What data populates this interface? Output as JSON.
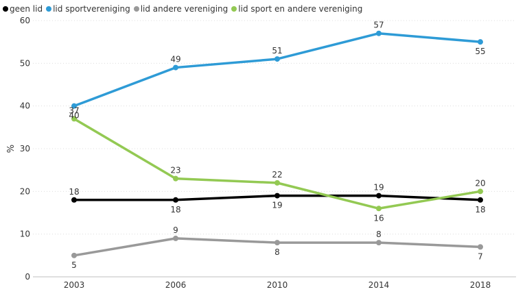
{
  "chart_data": {
    "type": "line",
    "title": "",
    "xlabel": "",
    "ylabel": "%",
    "ylim": [
      0,
      60
    ],
    "yticks": [
      0,
      10,
      20,
      30,
      40,
      50,
      60
    ],
    "categories": [
      "2003",
      "2006",
      "2010",
      "2014",
      "2018"
    ],
    "grid": true,
    "legend_position": "top-left",
    "series": [
      {
        "name": "geen lid",
        "color": "#000000",
        "values": [
          18,
          18,
          19,
          19,
          18
        ],
        "label_positions": [
          "above",
          "below",
          "below",
          "above",
          "below"
        ]
      },
      {
        "name": "lid sportvereniging",
        "color": "#2e9bd6",
        "values": [
          40,
          49,
          51,
          57,
          55
        ],
        "label_positions": [
          "below",
          "above",
          "above",
          "above",
          "below"
        ]
      },
      {
        "name": "lid andere vereniging",
        "color": "#999999",
        "values": [
          5,
          9,
          8,
          8,
          7
        ],
        "label_positions": [
          "below",
          "above",
          "below",
          "above",
          "below"
        ]
      },
      {
        "name": "lid sport en andere vereniging",
        "color": "#93c953",
        "values": [
          37,
          23,
          22,
          16,
          20
        ],
        "label_positions": [
          "above",
          "above",
          "above",
          "below",
          "above"
        ]
      }
    ]
  }
}
